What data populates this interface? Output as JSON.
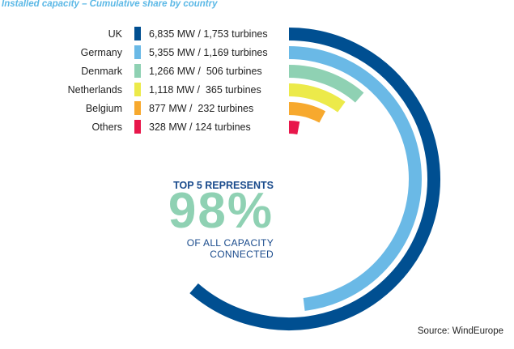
{
  "title": "Installed capacity – Cumulative share by country",
  "chart_data": {
    "type": "bar",
    "categories": [
      "UK",
      "Germany",
      "Denmark",
      "Netherlands",
      "Belgium",
      "Others"
    ],
    "series": [
      {
        "name": "MW",
        "values": [
          6835,
          5355,
          1266,
          1118,
          877,
          328
        ]
      },
      {
        "name": "turbines",
        "values": [
          1753,
          1169,
          506,
          365,
          232,
          124
        ]
      }
    ],
    "value_labels": [
      "6,835 MW / 1,753 turbines",
      "5,355 MW / 1,169 turbines",
      "1,266 MW /  506 turbines",
      "1,118 MW /  365 turbines",
      "877 MW /  232 turbines",
      "328 MW / 124 turbines"
    ],
    "colors": [
      "#004f91",
      "#6ab9e6",
      "#8fd1b3",
      "#ecea4a",
      "#f7a92e",
      "#e8174b"
    ]
  },
  "callout": {
    "headline": "TOP 5 REPRESENTS",
    "percent": "98%",
    "line1": "OF ALL CAPACITY",
    "line2": "CONNECTED"
  },
  "source": "Source: WindEurope"
}
